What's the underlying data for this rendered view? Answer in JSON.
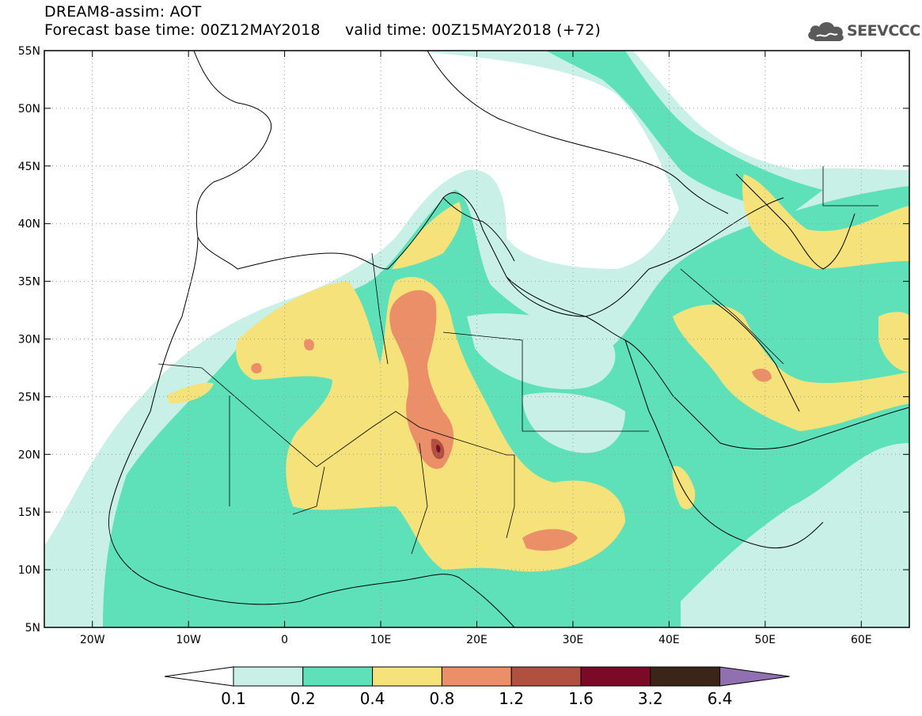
{
  "title_line1": "DREAM8-assim: AOT",
  "title_line2": "Forecast base time: 00Z12MAY2018     valid time: 00Z15MAY2018 (+72)",
  "logo_text": "SEEVCCC",
  "logo_icon": "cloud-icon",
  "map": {
    "lon_min": -25,
    "lon_max": 65,
    "lat_min": 5,
    "lat_max": 55,
    "lat_ticks": [
      {
        "value": 55,
        "label": "55N"
      },
      {
        "value": 50,
        "label": "50N"
      },
      {
        "value": 45,
        "label": "45N"
      },
      {
        "value": 40,
        "label": "40N"
      },
      {
        "value": 35,
        "label": "35N"
      },
      {
        "value": 30,
        "label": "30N"
      },
      {
        "value": 25,
        "label": "25N"
      },
      {
        "value": 20,
        "label": "20N"
      },
      {
        "value": 15,
        "label": "15N"
      },
      {
        "value": 10,
        "label": "10N"
      },
      {
        "value": 5,
        "label": "5N"
      }
    ],
    "lon_ticks": [
      {
        "value": -20,
        "label": "20W"
      },
      {
        "value": -10,
        "label": "10W"
      },
      {
        "value": 0,
        "label": "0"
      },
      {
        "value": 10,
        "label": "10E"
      },
      {
        "value": 20,
        "label": "20E"
      },
      {
        "value": 30,
        "label": "30E"
      },
      {
        "value": 40,
        "label": "40E"
      },
      {
        "value": 50,
        "label": "50E"
      },
      {
        "value": 60,
        "label": "60E"
      }
    ]
  },
  "colorbar": {
    "colors": [
      "#ffffff",
      "#c8f0e6",
      "#5ee0b8",
      "#f5e27a",
      "#eb8f68",
      "#b05040",
      "#7a0a28",
      "#3b2418",
      "#9070b0"
    ],
    "labels": [
      "0.1",
      "0.2",
      "0.4",
      "0.8",
      "1.2",
      "1.6",
      "3.2",
      "6.4"
    ]
  }
}
